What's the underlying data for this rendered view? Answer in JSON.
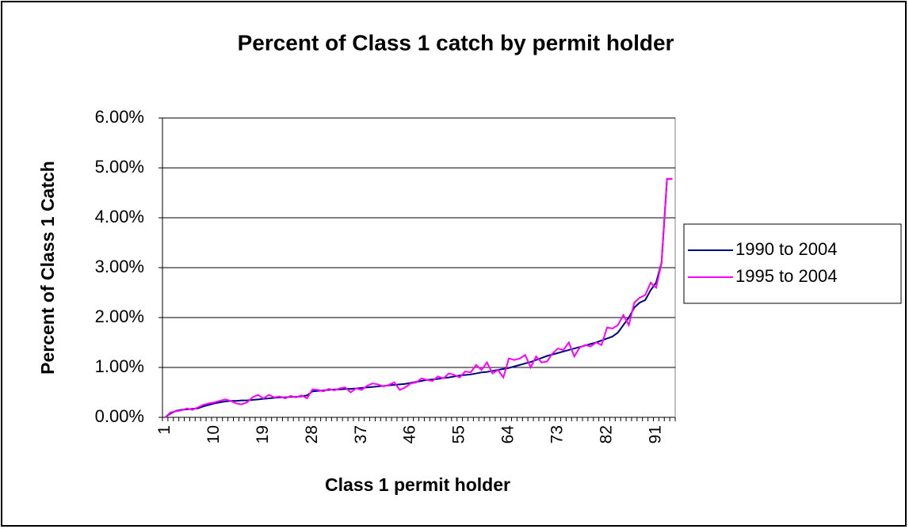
{
  "chart_data": {
    "type": "line",
    "title": "Percent of Class 1 catch by permit holder",
    "xlabel": "Class 1 permit holder",
    "ylabel": "Percent of Class 1 Catch",
    "categories": [
      "1",
      null,
      null,
      null,
      null,
      null,
      null,
      null,
      null,
      "10",
      null,
      null,
      null,
      null,
      null,
      null,
      null,
      null,
      "19",
      null,
      null,
      null,
      null,
      null,
      null,
      null,
      null,
      "28",
      null,
      null,
      null,
      null,
      null,
      null,
      null,
      null,
      "37",
      null,
      null,
      null,
      null,
      null,
      null,
      null,
      null,
      "46",
      null,
      null,
      null,
      null,
      null,
      null,
      null,
      null,
      "55",
      null,
      null,
      null,
      null,
      null,
      null,
      null,
      null,
      "64",
      null,
      null,
      null,
      null,
      null,
      null,
      null,
      null,
      "73",
      null,
      null,
      null,
      null,
      null,
      null,
      null,
      null,
      "82",
      null,
      null,
      null,
      null,
      null,
      null,
      null,
      null,
      "91",
      null,
      null,
      null
    ],
    "series": [
      {
        "name": "1990 to 2004",
        "color": "#000080",
        "values": [
          0.0,
          0.08,
          0.13,
          0.15,
          0.16,
          0.17,
          0.18,
          0.22,
          0.25,
          0.28,
          0.3,
          0.32,
          0.33,
          0.33,
          0.34,
          0.34,
          0.35,
          0.36,
          0.37,
          0.38,
          0.39,
          0.4,
          0.4,
          0.41,
          0.41,
          0.42,
          0.44,
          0.52,
          0.53,
          0.54,
          0.55,
          0.56,
          0.56,
          0.57,
          0.57,
          0.58,
          0.59,
          0.6,
          0.61,
          0.62,
          0.63,
          0.64,
          0.65,
          0.66,
          0.67,
          0.69,
          0.71,
          0.73,
          0.75,
          0.76,
          0.77,
          0.79,
          0.8,
          0.82,
          0.84,
          0.85,
          0.86,
          0.88,
          0.9,
          0.91,
          0.93,
          0.95,
          0.97,
          0.99,
          1.02,
          1.05,
          1.08,
          1.11,
          1.15,
          1.19,
          1.23,
          1.26,
          1.29,
          1.32,
          1.35,
          1.38,
          1.41,
          1.44,
          1.47,
          1.5,
          1.54,
          1.58,
          1.62,
          1.7,
          1.85,
          2.0,
          2.2,
          2.3,
          2.35,
          2.55,
          2.7,
          3.1,
          4.78,
          4.78
        ]
      },
      {
        "name": "1995 to 2004",
        "color": "#ff00ff",
        "values": [
          0.0,
          0.1,
          0.12,
          0.14,
          0.18,
          0.15,
          0.2,
          0.25,
          0.28,
          0.3,
          0.33,
          0.36,
          0.33,
          0.28,
          0.26,
          0.3,
          0.4,
          0.45,
          0.38,
          0.45,
          0.4,
          0.42,
          0.38,
          0.43,
          0.4,
          0.44,
          0.38,
          0.56,
          0.55,
          0.52,
          0.57,
          0.54,
          0.58,
          0.6,
          0.5,
          0.58,
          0.55,
          0.63,
          0.68,
          0.66,
          0.62,
          0.65,
          0.7,
          0.55,
          0.6,
          0.68,
          0.7,
          0.78,
          0.75,
          0.73,
          0.82,
          0.78,
          0.88,
          0.85,
          0.8,
          0.92,
          0.9,
          1.05,
          0.95,
          1.1,
          0.88,
          0.95,
          0.8,
          1.18,
          1.15,
          1.18,
          1.25,
          1.0,
          1.22,
          1.1,
          1.12,
          1.28,
          1.38,
          1.35,
          1.5,
          1.22,
          1.4,
          1.45,
          1.42,
          1.5,
          1.45,
          1.8,
          1.78,
          1.85,
          2.05,
          1.85,
          2.3,
          2.4,
          2.45,
          2.7,
          2.6,
          3.1,
          4.78,
          4.78
        ]
      }
    ],
    "ylim": [
      0,
      6
    ],
    "yticks": [
      {
        "value": 0,
        "label": "0.00%"
      },
      {
        "value": 1,
        "label": "1.00%"
      },
      {
        "value": 2,
        "label": "2.00%"
      },
      {
        "value": 3,
        "label": "3.00%"
      },
      {
        "value": 4,
        "label": "4.00%"
      },
      {
        "value": 5,
        "label": "5.00%"
      },
      {
        "value": 6,
        "label": "6.00%"
      }
    ],
    "grid": true,
    "legend": "right"
  }
}
